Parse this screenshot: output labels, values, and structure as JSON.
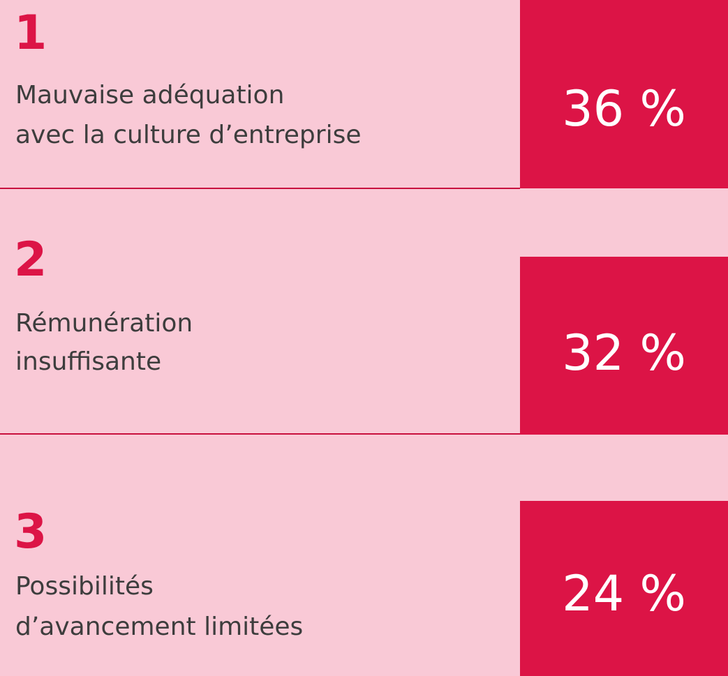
{
  "items": [
    {
      "rank": "1",
      "label": [
        "Mauvaise adéquation",
        "avec la culture d’entreprise"
      ],
      "percent": "36 %"
    },
    {
      "rank": "2",
      "label": [
        "Rémunération",
        "insuffisante"
      ],
      "percent": "32 %"
    },
    {
      "rank": "3",
      "label": [
        "Possibilités",
        "d’avancement limitées"
      ],
      "percent": "24 %"
    }
  ]
}
